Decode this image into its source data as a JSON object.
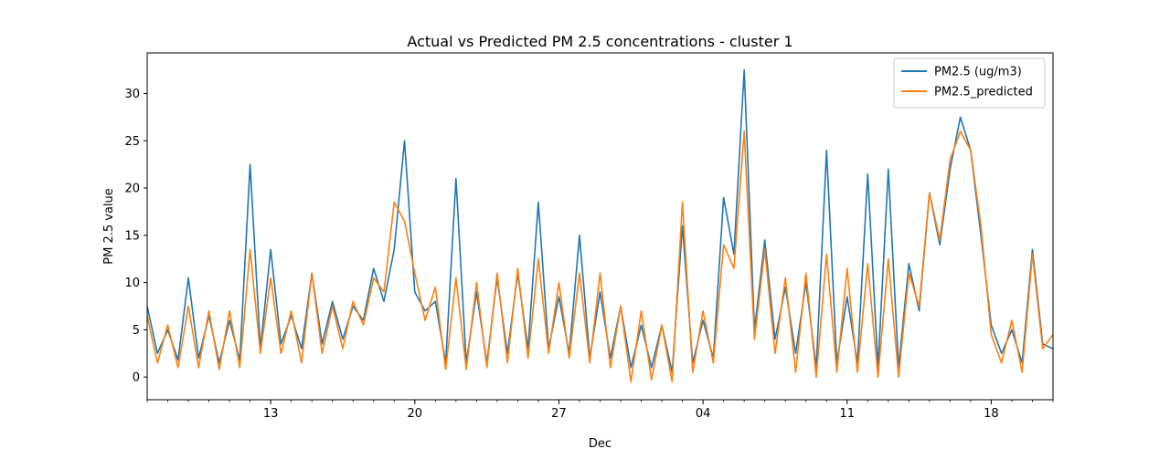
{
  "chart_data": {
    "type": "line",
    "title": "Actual vs Predicted PM 2.5 concentrations - cluster 1",
    "xlabel": "Dec",
    "ylabel": "PM 2.5 value",
    "x_range": [
      "2023-11-07",
      "2023-12-21"
    ],
    "ylim": [
      -2.4,
      34.3
    ],
    "y_ticks": [
      0,
      5,
      10,
      15,
      20,
      25,
      30
    ],
    "x_ticks": [
      {
        "date": "2023-11-13",
        "label": "13"
      },
      {
        "date": "2023-11-20",
        "label": "20"
      },
      {
        "date": "2023-11-27",
        "label": "27"
      },
      {
        "date": "2023-12-04",
        "label": "04"
      },
      {
        "date": "2023-12-11",
        "label": "11"
      },
      {
        "date": "2023-12-18",
        "label": "18"
      }
    ],
    "grid": false,
    "legend_position": "top-right",
    "series": [
      {
        "name": "PM2.5 (ug/m3)",
        "color": "#1f77b4",
        "x": [
          "2023-11-07 00:00",
          "2023-11-07 12:00",
          "2023-11-08 00:00",
          "2023-11-08 12:00",
          "2023-11-09 00:00",
          "2023-11-09 12:00",
          "2023-11-10 00:00",
          "2023-11-10 12:00",
          "2023-11-11 00:00",
          "2023-11-11 12:00",
          "2023-11-12 00:00",
          "2023-11-12 12:00",
          "2023-11-13 00:00",
          "2023-11-13 12:00",
          "2023-11-14 00:00",
          "2023-11-14 12:00",
          "2023-11-15 00:00",
          "2023-11-15 12:00",
          "2023-11-16 00:00",
          "2023-11-16 12:00",
          "2023-11-17 00:00",
          "2023-11-17 12:00",
          "2023-11-18 00:00",
          "2023-11-18 12:00",
          "2023-11-19 00:00",
          "2023-11-19 12:00",
          "2023-11-20 00:00",
          "2023-11-20 12:00",
          "2023-11-21 00:00",
          "2023-11-21 12:00",
          "2023-11-22 00:00",
          "2023-11-22 12:00",
          "2023-11-23 00:00",
          "2023-11-23 12:00",
          "2023-11-24 00:00",
          "2023-11-24 12:00",
          "2023-11-25 00:00",
          "2023-11-25 12:00",
          "2023-11-26 00:00",
          "2023-11-26 12:00",
          "2023-11-27 00:00",
          "2023-11-27 12:00",
          "2023-11-28 00:00",
          "2023-11-28 12:00",
          "2023-11-29 00:00",
          "2023-11-29 12:00",
          "2023-11-30 00:00",
          "2023-11-30 12:00",
          "2023-12-01 00:00",
          "2023-12-01 12:00",
          "2023-12-02 00:00",
          "2023-12-02 12:00",
          "2023-12-03 00:00",
          "2023-12-03 12:00",
          "2023-12-04 00:00",
          "2023-12-04 12:00",
          "2023-12-05 00:00",
          "2023-12-05 12:00",
          "2023-12-06 00:00",
          "2023-12-06 12:00",
          "2023-12-07 00:00",
          "2023-12-07 12:00",
          "2023-12-08 00:00",
          "2023-12-08 12:00",
          "2023-12-09 00:00",
          "2023-12-09 12:00",
          "2023-12-10 00:00",
          "2023-12-10 12:00",
          "2023-12-11 00:00",
          "2023-12-11 12:00",
          "2023-12-12 00:00",
          "2023-12-12 12:00",
          "2023-12-13 00:00",
          "2023-12-13 12:00",
          "2023-12-14 00:00",
          "2023-12-14 12:00",
          "2023-12-15 00:00",
          "2023-12-15 12:00",
          "2023-12-16 00:00",
          "2023-12-16 12:00",
          "2023-12-17 00:00",
          "2023-12-17 12:00",
          "2023-12-18 00:00",
          "2023-12-18 12:00",
          "2023-12-19 00:00",
          "2023-12-19 12:00",
          "2023-12-20 00:00",
          "2023-12-20 12:00",
          "2023-12-21 00:00"
        ],
        "values": [
          7.5,
          2.5,
          5.0,
          1.8,
          10.5,
          2.0,
          6.5,
          1.5,
          6.0,
          1.8,
          22.5,
          3.0,
          13.5,
          3.5,
          6.5,
          3.0,
          11.0,
          3.5,
          8.0,
          4.0,
          7.5,
          6.0,
          11.5,
          8.0,
          13.5,
          25.0,
          9.0,
          7.0,
          8.0,
          1.5,
          21.0,
          1.5,
          9.0,
          1.5,
          10.5,
          2.5,
          11.0,
          3.0,
          18.5,
          3.0,
          8.5,
          2.5,
          15.0,
          2.0,
          9.0,
          2.0,
          7.5,
          1.0,
          5.5,
          1.0,
          5.5,
          0.5,
          16.0,
          1.5,
          6.0,
          2.0,
          19.0,
          13.0,
          32.5,
          5.0,
          14.5,
          4.0,
          9.5,
          2.5,
          10.0,
          1.0,
          24.0,
          1.5,
          8.5,
          1.5,
          21.5,
          1.0,
          22.0,
          1.0,
          12.0,
          7.0,
          19.5,
          14.0,
          22.0,
          27.5,
          24.0,
          15.0,
          5.5,
          2.5,
          5.0,
          1.5,
          13.5,
          3.5,
          3.0
        ]
      },
      {
        "name": "PM2.5_predicted",
        "color": "#ff7f0e",
        "x": [
          "2023-11-07 00:00",
          "2023-11-07 12:00",
          "2023-11-08 00:00",
          "2023-11-08 12:00",
          "2023-11-09 00:00",
          "2023-11-09 12:00",
          "2023-11-10 00:00",
          "2023-11-10 12:00",
          "2023-11-11 00:00",
          "2023-11-11 12:00",
          "2023-11-12 00:00",
          "2023-11-12 12:00",
          "2023-11-13 00:00",
          "2023-11-13 12:00",
          "2023-11-14 00:00",
          "2023-11-14 12:00",
          "2023-11-15 00:00",
          "2023-11-15 12:00",
          "2023-11-16 00:00",
          "2023-11-16 12:00",
          "2023-11-17 00:00",
          "2023-11-17 12:00",
          "2023-11-18 00:00",
          "2023-11-18 12:00",
          "2023-11-19 00:00",
          "2023-11-19 12:00",
          "2023-11-20 00:00",
          "2023-11-20 12:00",
          "2023-11-21 00:00",
          "2023-11-21 12:00",
          "2023-11-22 00:00",
          "2023-11-22 12:00",
          "2023-11-23 00:00",
          "2023-11-23 12:00",
          "2023-11-24 00:00",
          "2023-11-24 12:00",
          "2023-11-25 00:00",
          "2023-11-25 12:00",
          "2023-11-26 00:00",
          "2023-11-26 12:00",
          "2023-11-27 00:00",
          "2023-11-27 12:00",
          "2023-11-28 00:00",
          "2023-11-28 12:00",
          "2023-11-29 00:00",
          "2023-11-29 12:00",
          "2023-11-30 00:00",
          "2023-11-30 12:00",
          "2023-12-01 00:00",
          "2023-12-01 12:00",
          "2023-12-02 00:00",
          "2023-12-02 12:00",
          "2023-12-03 00:00",
          "2023-12-03 12:00",
          "2023-12-04 00:00",
          "2023-12-04 12:00",
          "2023-12-05 00:00",
          "2023-12-05 12:00",
          "2023-12-06 00:00",
          "2023-12-06 12:00",
          "2023-12-07 00:00",
          "2023-12-07 12:00",
          "2023-12-08 00:00",
          "2023-12-08 12:00",
          "2023-12-09 00:00",
          "2023-12-09 12:00",
          "2023-12-10 00:00",
          "2023-12-10 12:00",
          "2023-12-11 00:00",
          "2023-12-11 12:00",
          "2023-12-12 00:00",
          "2023-12-12 12:00",
          "2023-12-13 00:00",
          "2023-12-13 12:00",
          "2023-12-14 00:00",
          "2023-12-14 12:00",
          "2023-12-15 00:00",
          "2023-12-15 12:00",
          "2023-12-16 00:00",
          "2023-12-16 12:00",
          "2023-12-17 00:00",
          "2023-12-17 12:00",
          "2023-12-18 00:00",
          "2023-12-18 12:00",
          "2023-12-19 00:00",
          "2023-12-19 12:00",
          "2023-12-20 00:00",
          "2023-12-20 12:00",
          "2023-12-21 00:00"
        ],
        "values": [
          6.5,
          1.5,
          5.5,
          1.0,
          7.5,
          1.0,
          7.0,
          0.8,
          7.0,
          1.0,
          13.5,
          2.5,
          10.5,
          2.5,
          7.0,
          1.5,
          11.0,
          2.5,
          7.5,
          3.0,
          8.0,
          5.5,
          10.5,
          9.0,
          18.5,
          16.5,
          11.0,
          6.0,
          9.5,
          0.8,
          10.5,
          0.8,
          10.0,
          1.0,
          11.0,
          1.5,
          11.5,
          2.0,
          12.5,
          2.5,
          10.0,
          2.0,
          11.0,
          1.5,
          11.0,
          1.0,
          7.5,
          -0.5,
          7.0,
          -0.3,
          5.5,
          -0.5,
          18.5,
          0.5,
          7.0,
          1.5,
          14.0,
          11.5,
          26.0,
          4.0,
          13.5,
          2.5,
          10.5,
          0.5,
          11.0,
          0.0,
          13.0,
          0.5,
          11.5,
          0.5,
          12.0,
          0.0,
          12.5,
          0.0,
          11.0,
          7.5,
          19.5,
          14.5,
          23.0,
          26.0,
          24.0,
          16.0,
          4.5,
          1.5,
          6.0,
          0.5,
          13.0,
          3.0,
          4.5
        ]
      }
    ]
  }
}
